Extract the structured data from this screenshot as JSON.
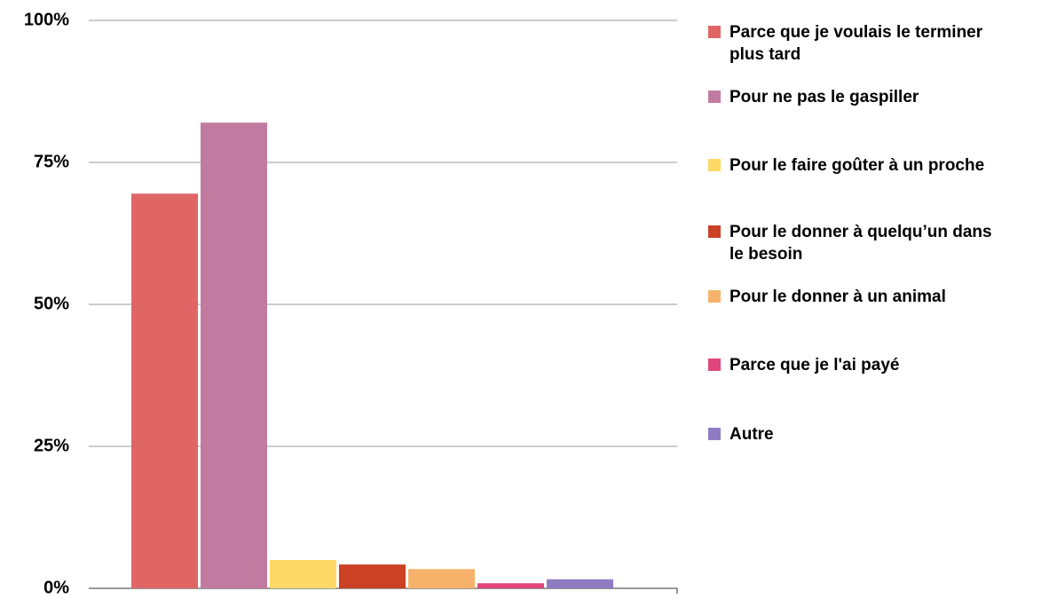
{
  "chart_data": {
    "type": "bar",
    "categories": [
      null
    ],
    "series": [
      {
        "name": "Parce que je voulais le terminer plus tard",
        "color": "#e06666",
        "values": [
          69.5
        ]
      },
      {
        "name": "Pour ne pas le gaspiller",
        "color": "#c27ba0",
        "values": [
          82
        ]
      },
      {
        "name": "Pour le faire goûter à un proche",
        "color": "#ffd966",
        "values": [
          5
        ]
      },
      {
        "name": "Pour le donner à quelqu’un dans le besoin",
        "color": "#cc4125",
        "values": [
          4.2
        ]
      },
      {
        "name": "Pour le donner à un animal",
        "color": "#f6b26b",
        "values": [
          3.4
        ]
      },
      {
        "name": "Parce que je l'ai payé",
        "color": "#e0457b",
        "values": [
          0.9
        ]
      },
      {
        "name": "Autre",
        "color": "#8e7cc3",
        "values": [
          1.6
        ]
      }
    ],
    "ylim": [
      0,
      100
    ],
    "yticks": [
      {
        "value": 0,
        "label": "0%"
      },
      {
        "value": 25,
        "label": "25%"
      },
      {
        "value": 50,
        "label": "50%"
      },
      {
        "value": 75,
        "label": "75%"
      },
      {
        "value": 100,
        "label": "100%"
      }
    ],
    "grid": true,
    "legend": "right"
  }
}
